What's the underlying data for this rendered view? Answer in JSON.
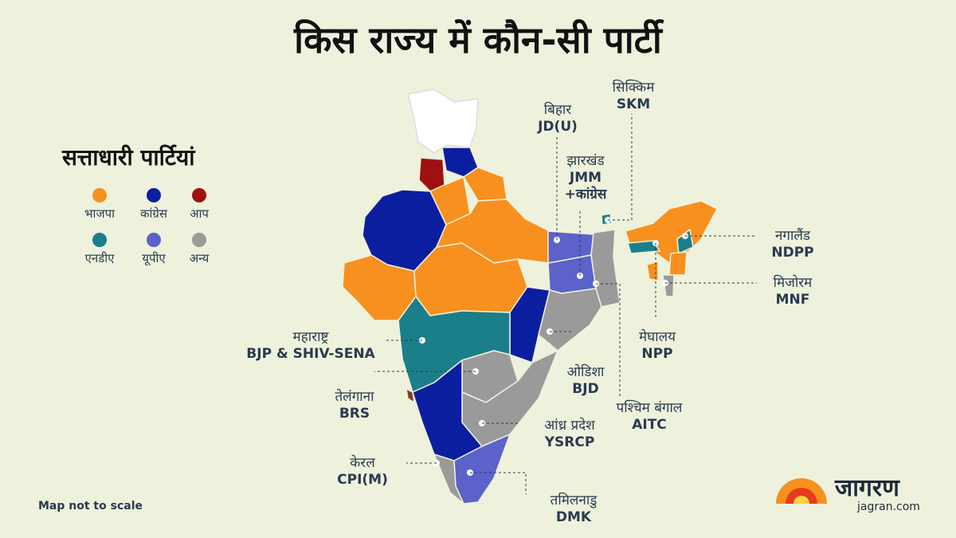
{
  "title": "किस राज्य में कौन-सी पार्टी",
  "legend": {
    "title": "सत्ताधारी पार्टियां",
    "items": [
      {
        "label": "भाजपा",
        "color": "#f7901e"
      },
      {
        "label": "कांग्रेस",
        "color": "#0c1ea0"
      },
      {
        "label": "आप",
        "color": "#a01010"
      },
      {
        "label": "एनडीए",
        "color": "#1a7f8a"
      },
      {
        "label": "यूपीए",
        "color": "#5b62c9"
      },
      {
        "label": "अन्य",
        "color": "#9a9a9a"
      }
    ]
  },
  "callouts": [
    {
      "state": "बिहार",
      "party": "JD(U)"
    },
    {
      "state": "सिक्किम",
      "party": "SKM"
    },
    {
      "state": "झारखंड",
      "party": "JMM\n+कांग्रेस"
    },
    {
      "state": "नगालैंड",
      "party": "NDPP"
    },
    {
      "state": "मिजोरम",
      "party": "MNF"
    },
    {
      "state": "महाराष्ट्र",
      "party": "BJP & SHIV-SENA"
    },
    {
      "state": "मेघालय",
      "party": "NPP"
    },
    {
      "state": "ओडिशा",
      "party": "BJD"
    },
    {
      "state": "पश्चिम बंगाल",
      "party": "AITC"
    },
    {
      "state": "तेलंगाना",
      "party": "BRS"
    },
    {
      "state": "आंध्र प्रदेश",
      "party": "YSRCP"
    },
    {
      "state": "केरल",
      "party": "CPI(M)"
    },
    {
      "state": "तमिलनाडु",
      "party": "DMK"
    }
  ],
  "note": "Map not to scale",
  "logo": {
    "name": "जागरण",
    "url": "jagran.com"
  }
}
